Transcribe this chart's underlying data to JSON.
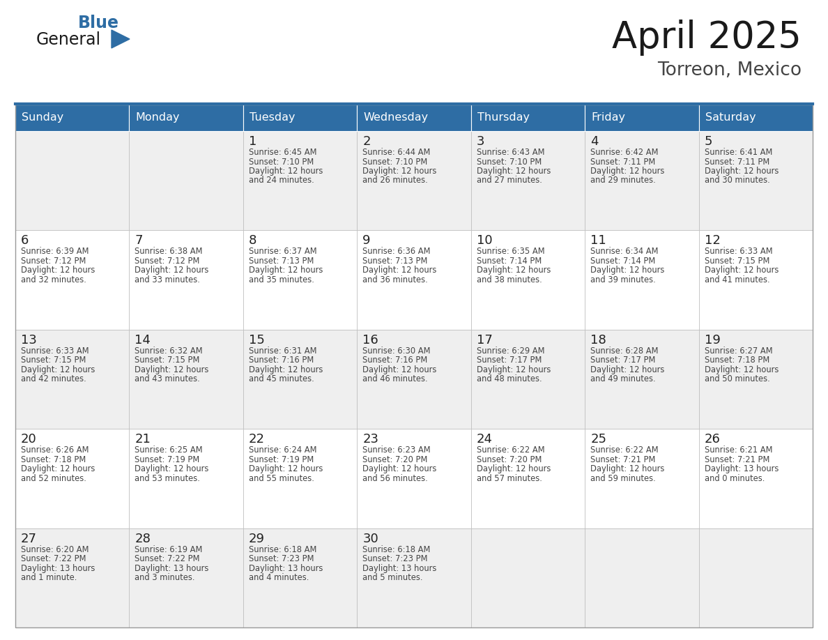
{
  "title": "April 2025",
  "subtitle": "Torreon, Mexico",
  "days_of_week": [
    "Sunday",
    "Monday",
    "Tuesday",
    "Wednesday",
    "Thursday",
    "Friday",
    "Saturday"
  ],
  "header_bg": "#2E6DA4",
  "header_text": "#FFFFFF",
  "cell_bg_light": "#EFEFEF",
  "cell_bg_white": "#FFFFFF",
  "cell_border": "#BBBBBB",
  "day_num_color": "#222222",
  "text_color": "#444444",
  "title_color": "#1a1a1a",
  "subtitle_color": "#444444",
  "calendar_data": [
    [
      {
        "day": null,
        "sunrise": null,
        "sunset": null,
        "daylight": null
      },
      {
        "day": null,
        "sunrise": null,
        "sunset": null,
        "daylight": null
      },
      {
        "day": 1,
        "sunrise": "6:45 AM",
        "sunset": "7:10 PM",
        "daylight": "12 hours and 24 minutes."
      },
      {
        "day": 2,
        "sunrise": "6:44 AM",
        "sunset": "7:10 PM",
        "daylight": "12 hours and 26 minutes."
      },
      {
        "day": 3,
        "sunrise": "6:43 AM",
        "sunset": "7:10 PM",
        "daylight": "12 hours and 27 minutes."
      },
      {
        "day": 4,
        "sunrise": "6:42 AM",
        "sunset": "7:11 PM",
        "daylight": "12 hours and 29 minutes."
      },
      {
        "day": 5,
        "sunrise": "6:41 AM",
        "sunset": "7:11 PM",
        "daylight": "12 hours and 30 minutes."
      }
    ],
    [
      {
        "day": 6,
        "sunrise": "6:39 AM",
        "sunset": "7:12 PM",
        "daylight": "12 hours and 32 minutes."
      },
      {
        "day": 7,
        "sunrise": "6:38 AM",
        "sunset": "7:12 PM",
        "daylight": "12 hours and 33 minutes."
      },
      {
        "day": 8,
        "sunrise": "6:37 AM",
        "sunset": "7:13 PM",
        "daylight": "12 hours and 35 minutes."
      },
      {
        "day": 9,
        "sunrise": "6:36 AM",
        "sunset": "7:13 PM",
        "daylight": "12 hours and 36 minutes."
      },
      {
        "day": 10,
        "sunrise": "6:35 AM",
        "sunset": "7:14 PM",
        "daylight": "12 hours and 38 minutes."
      },
      {
        "day": 11,
        "sunrise": "6:34 AM",
        "sunset": "7:14 PM",
        "daylight": "12 hours and 39 minutes."
      },
      {
        "day": 12,
        "sunrise": "6:33 AM",
        "sunset": "7:15 PM",
        "daylight": "12 hours and 41 minutes."
      }
    ],
    [
      {
        "day": 13,
        "sunrise": "6:33 AM",
        "sunset": "7:15 PM",
        "daylight": "12 hours and 42 minutes."
      },
      {
        "day": 14,
        "sunrise": "6:32 AM",
        "sunset": "7:15 PM",
        "daylight": "12 hours and 43 minutes."
      },
      {
        "day": 15,
        "sunrise": "6:31 AM",
        "sunset": "7:16 PM",
        "daylight": "12 hours and 45 minutes."
      },
      {
        "day": 16,
        "sunrise": "6:30 AM",
        "sunset": "7:16 PM",
        "daylight": "12 hours and 46 minutes."
      },
      {
        "day": 17,
        "sunrise": "6:29 AM",
        "sunset": "7:17 PM",
        "daylight": "12 hours and 48 minutes."
      },
      {
        "day": 18,
        "sunrise": "6:28 AM",
        "sunset": "7:17 PM",
        "daylight": "12 hours and 49 minutes."
      },
      {
        "day": 19,
        "sunrise": "6:27 AM",
        "sunset": "7:18 PM",
        "daylight": "12 hours and 50 minutes."
      }
    ],
    [
      {
        "day": 20,
        "sunrise": "6:26 AM",
        "sunset": "7:18 PM",
        "daylight": "12 hours and 52 minutes."
      },
      {
        "day": 21,
        "sunrise": "6:25 AM",
        "sunset": "7:19 PM",
        "daylight": "12 hours and 53 minutes."
      },
      {
        "day": 22,
        "sunrise": "6:24 AM",
        "sunset": "7:19 PM",
        "daylight": "12 hours and 55 minutes."
      },
      {
        "day": 23,
        "sunrise": "6:23 AM",
        "sunset": "7:20 PM",
        "daylight": "12 hours and 56 minutes."
      },
      {
        "day": 24,
        "sunrise": "6:22 AM",
        "sunset": "7:20 PM",
        "daylight": "12 hours and 57 minutes."
      },
      {
        "day": 25,
        "sunrise": "6:22 AM",
        "sunset": "7:21 PM",
        "daylight": "12 hours and 59 minutes."
      },
      {
        "day": 26,
        "sunrise": "6:21 AM",
        "sunset": "7:21 PM",
        "daylight": "13 hours and 0 minutes."
      }
    ],
    [
      {
        "day": 27,
        "sunrise": "6:20 AM",
        "sunset": "7:22 PM",
        "daylight": "13 hours and 1 minute."
      },
      {
        "day": 28,
        "sunrise": "6:19 AM",
        "sunset": "7:22 PM",
        "daylight": "13 hours and 3 minutes."
      },
      {
        "day": 29,
        "sunrise": "6:18 AM",
        "sunset": "7:23 PM",
        "daylight": "13 hours and 4 minutes."
      },
      {
        "day": 30,
        "sunrise": "6:18 AM",
        "sunset": "7:23 PM",
        "daylight": "13 hours and 5 minutes."
      },
      {
        "day": null,
        "sunrise": null,
        "sunset": null,
        "daylight": null
      },
      {
        "day": null,
        "sunrise": null,
        "sunset": null,
        "daylight": null
      },
      {
        "day": null,
        "sunrise": null,
        "sunset": null,
        "daylight": null
      }
    ]
  ],
  "logo_color1": "#1a1a1a",
  "logo_color2": "#2E6DA4",
  "logo_triangle_color": "#2E6DA4",
  "fig_width": 11.88,
  "fig_height": 9.18,
  "dpi": 100
}
